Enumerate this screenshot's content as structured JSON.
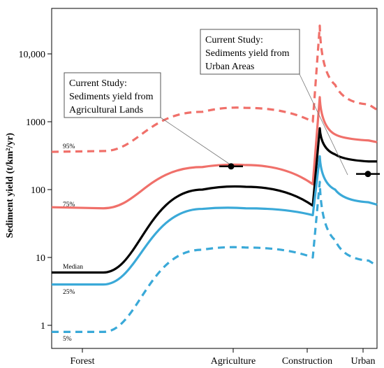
{
  "chart_data": {
    "type": "line",
    "ylabel": "Sediment yield (t/km²/yr)",
    "yscale": "log",
    "ylim": [
      0.5,
      40000
    ],
    "yticks": [
      {
        "value": 1,
        "label": "1"
      },
      {
        "value": 10,
        "label": "10"
      },
      {
        "value": 100,
        "label": "100"
      },
      {
        "value": 1000,
        "label": "1000"
      },
      {
        "value": 10000,
        "label": "10,000"
      }
    ],
    "categories": [
      "Forest",
      "Agriculture",
      "Construction",
      "Urban"
    ],
    "grid": false,
    "series": [
      {
        "name": "95%",
        "color": "#f0706a",
        "dash": true,
        "points": [
          [
            "Forest",
            360
          ],
          [
            "Forest+",
            370
          ],
          [
            "Agriculture-",
            1400
          ],
          [
            "Agriculture",
            1600
          ],
          [
            "Construction-",
            1000
          ],
          [
            "Construction",
            26000
          ],
          [
            "Construction+",
            3500
          ],
          [
            "Urban",
            1800
          ],
          [
            "Urban+",
            1500
          ]
        ]
      },
      {
        "name": "75%",
        "color": "#f0706a",
        "dash": false,
        "points": [
          [
            "Forest",
            55
          ],
          [
            "Forest+",
            53
          ],
          [
            "Agriculture-",
            215
          ],
          [
            "Agriculture",
            230
          ],
          [
            "Construction-",
            120
          ],
          [
            "Construction",
            2300
          ],
          [
            "Construction+",
            650
          ],
          [
            "Urban",
            530
          ],
          [
            "Urban+",
            500
          ]
        ]
      },
      {
        "name": "Median",
        "color": "#000000",
        "dash": false,
        "points": [
          [
            "Forest",
            6
          ],
          [
            "Forest+",
            6
          ],
          [
            "Agriculture-",
            100
          ],
          [
            "Agriculture",
            110
          ],
          [
            "Construction-",
            58
          ],
          [
            "Construction",
            800
          ],
          [
            "Construction+",
            330
          ],
          [
            "Urban",
            260
          ],
          [
            "Urban+",
            260
          ]
        ]
      },
      {
        "name": "25%",
        "color": "#3aa9d8",
        "dash": false,
        "points": [
          [
            "Forest",
            4
          ],
          [
            "Forest+",
            4
          ],
          [
            "Agriculture-",
            52
          ],
          [
            "Agriculture",
            53
          ],
          [
            "Construction-",
            42
          ],
          [
            "Construction",
            310
          ],
          [
            "Construction+",
            100
          ],
          [
            "Urban",
            65
          ],
          [
            "Urban+",
            60
          ]
        ]
      },
      {
        "name": "5%",
        "color": "#3aa9d8",
        "dash": true,
        "points": [
          [
            "Forest",
            0.8
          ],
          [
            "Forest+",
            0.8
          ],
          [
            "Agriculture-",
            13
          ],
          [
            "Agriculture",
            14
          ],
          [
            "Construction-",
            10
          ],
          [
            "Construction",
            130
          ],
          [
            "Construction+",
            18
          ],
          [
            "Urban",
            9
          ],
          [
            "Urban+",
            7.5
          ]
        ]
      }
    ],
    "current_study": [
      {
        "category": "Agriculture",
        "value": 220,
        "caption": [
          "Current Study:",
          "Sediments yield from",
          "Agricultural Lands"
        ]
      },
      {
        "category": "Urban",
        "value": 170,
        "caption": [
          "Current Study:",
          "Sediments yield from",
          "Urban Areas"
        ]
      }
    ],
    "percentile_labels": [
      "95%",
      "75%",
      "Median",
      "25%",
      "5%"
    ]
  }
}
